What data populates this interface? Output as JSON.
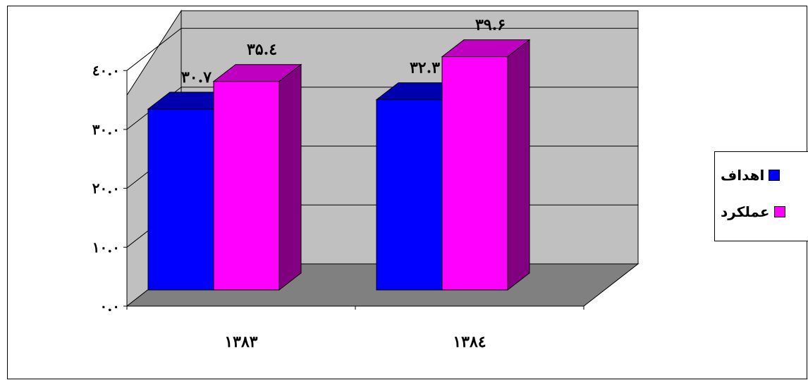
{
  "chart_data": {
    "type": "bar",
    "categories": [
      "۱۳۸۳",
      "۱۳۸٤"
    ],
    "series": [
      {
        "name": "اهداف",
        "values": [
          30.7,
          32.3
        ],
        "data_labels": [
          "۳۰.۷",
          "۳۲.۳"
        ]
      },
      {
        "name": "عملکرد",
        "values": [
          35.4,
          39.6
        ],
        "data_labels": [
          "۳۵.٤",
          "۳۹.۶"
        ]
      }
    ],
    "yticks": [
      "۰.۰",
      "۱۰.۰",
      "۲۰.۰",
      "۳۰.۰",
      "٤۰.۰"
    ],
    "ylim": [
      0,
      40
    ],
    "grid": true,
    "legend_position": "right",
    "colors": {
      "series_0_front": "#0000ff",
      "series_0_top": "#0000b0",
      "series_0_side": "#00008a",
      "series_1_front": "#ff00ff",
      "series_1_top": "#c000c0",
      "series_1_side": "#800080",
      "back_wall": "#c0c0c0",
      "side_wall": "#c0c0c0",
      "floor": "#808080"
    }
  }
}
